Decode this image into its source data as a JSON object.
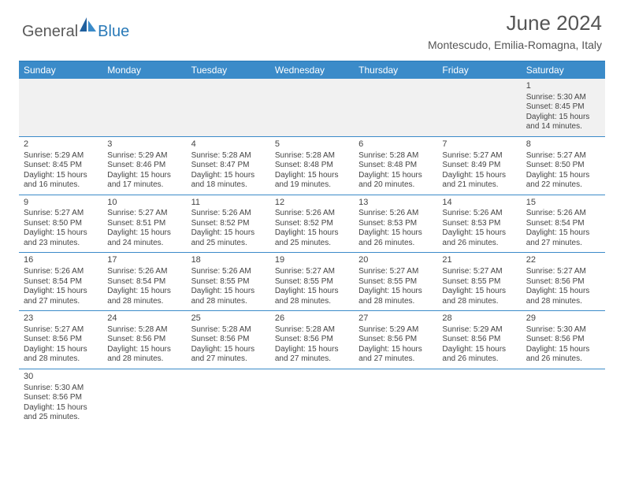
{
  "logo": {
    "general": "General",
    "blue": "Blue"
  },
  "title": "June 2024",
  "location": "Montescudo, Emilia-Romagna, Italy",
  "colors": {
    "header_bg": "#3b8bc9",
    "border": "#3b8bc9",
    "first_week_bg": "#f1f1f1",
    "text": "#444444",
    "title_text": "#555555"
  },
  "day_names": [
    "Sunday",
    "Monday",
    "Tuesday",
    "Wednesday",
    "Thursday",
    "Friday",
    "Saturday"
  ],
  "weeks": [
    [
      null,
      null,
      null,
      null,
      null,
      null,
      {
        "n": "1",
        "sr": "Sunrise: 5:30 AM",
        "ss": "Sunset: 8:45 PM",
        "d1": "Daylight: 15 hours",
        "d2": "and 14 minutes."
      }
    ],
    [
      {
        "n": "2",
        "sr": "Sunrise: 5:29 AM",
        "ss": "Sunset: 8:45 PM",
        "d1": "Daylight: 15 hours",
        "d2": "and 16 minutes."
      },
      {
        "n": "3",
        "sr": "Sunrise: 5:29 AM",
        "ss": "Sunset: 8:46 PM",
        "d1": "Daylight: 15 hours",
        "d2": "and 17 minutes."
      },
      {
        "n": "4",
        "sr": "Sunrise: 5:28 AM",
        "ss": "Sunset: 8:47 PM",
        "d1": "Daylight: 15 hours",
        "d2": "and 18 minutes."
      },
      {
        "n": "5",
        "sr": "Sunrise: 5:28 AM",
        "ss": "Sunset: 8:48 PM",
        "d1": "Daylight: 15 hours",
        "d2": "and 19 minutes."
      },
      {
        "n": "6",
        "sr": "Sunrise: 5:28 AM",
        "ss": "Sunset: 8:48 PM",
        "d1": "Daylight: 15 hours",
        "d2": "and 20 minutes."
      },
      {
        "n": "7",
        "sr": "Sunrise: 5:27 AM",
        "ss": "Sunset: 8:49 PM",
        "d1": "Daylight: 15 hours",
        "d2": "and 21 minutes."
      },
      {
        "n": "8",
        "sr": "Sunrise: 5:27 AM",
        "ss": "Sunset: 8:50 PM",
        "d1": "Daylight: 15 hours",
        "d2": "and 22 minutes."
      }
    ],
    [
      {
        "n": "9",
        "sr": "Sunrise: 5:27 AM",
        "ss": "Sunset: 8:50 PM",
        "d1": "Daylight: 15 hours",
        "d2": "and 23 minutes."
      },
      {
        "n": "10",
        "sr": "Sunrise: 5:27 AM",
        "ss": "Sunset: 8:51 PM",
        "d1": "Daylight: 15 hours",
        "d2": "and 24 minutes."
      },
      {
        "n": "11",
        "sr": "Sunrise: 5:26 AM",
        "ss": "Sunset: 8:52 PM",
        "d1": "Daylight: 15 hours",
        "d2": "and 25 minutes."
      },
      {
        "n": "12",
        "sr": "Sunrise: 5:26 AM",
        "ss": "Sunset: 8:52 PM",
        "d1": "Daylight: 15 hours",
        "d2": "and 25 minutes."
      },
      {
        "n": "13",
        "sr": "Sunrise: 5:26 AM",
        "ss": "Sunset: 8:53 PM",
        "d1": "Daylight: 15 hours",
        "d2": "and 26 minutes."
      },
      {
        "n": "14",
        "sr": "Sunrise: 5:26 AM",
        "ss": "Sunset: 8:53 PM",
        "d1": "Daylight: 15 hours",
        "d2": "and 26 minutes."
      },
      {
        "n": "15",
        "sr": "Sunrise: 5:26 AM",
        "ss": "Sunset: 8:54 PM",
        "d1": "Daylight: 15 hours",
        "d2": "and 27 minutes."
      }
    ],
    [
      {
        "n": "16",
        "sr": "Sunrise: 5:26 AM",
        "ss": "Sunset: 8:54 PM",
        "d1": "Daylight: 15 hours",
        "d2": "and 27 minutes."
      },
      {
        "n": "17",
        "sr": "Sunrise: 5:26 AM",
        "ss": "Sunset: 8:54 PM",
        "d1": "Daylight: 15 hours",
        "d2": "and 28 minutes."
      },
      {
        "n": "18",
        "sr": "Sunrise: 5:26 AM",
        "ss": "Sunset: 8:55 PM",
        "d1": "Daylight: 15 hours",
        "d2": "and 28 minutes."
      },
      {
        "n": "19",
        "sr": "Sunrise: 5:27 AM",
        "ss": "Sunset: 8:55 PM",
        "d1": "Daylight: 15 hours",
        "d2": "and 28 minutes."
      },
      {
        "n": "20",
        "sr": "Sunrise: 5:27 AM",
        "ss": "Sunset: 8:55 PM",
        "d1": "Daylight: 15 hours",
        "d2": "and 28 minutes."
      },
      {
        "n": "21",
        "sr": "Sunrise: 5:27 AM",
        "ss": "Sunset: 8:55 PM",
        "d1": "Daylight: 15 hours",
        "d2": "and 28 minutes."
      },
      {
        "n": "22",
        "sr": "Sunrise: 5:27 AM",
        "ss": "Sunset: 8:56 PM",
        "d1": "Daylight: 15 hours",
        "d2": "and 28 minutes."
      }
    ],
    [
      {
        "n": "23",
        "sr": "Sunrise: 5:27 AM",
        "ss": "Sunset: 8:56 PM",
        "d1": "Daylight: 15 hours",
        "d2": "and 28 minutes."
      },
      {
        "n": "24",
        "sr": "Sunrise: 5:28 AM",
        "ss": "Sunset: 8:56 PM",
        "d1": "Daylight: 15 hours",
        "d2": "and 28 minutes."
      },
      {
        "n": "25",
        "sr": "Sunrise: 5:28 AM",
        "ss": "Sunset: 8:56 PM",
        "d1": "Daylight: 15 hours",
        "d2": "and 27 minutes."
      },
      {
        "n": "26",
        "sr": "Sunrise: 5:28 AM",
        "ss": "Sunset: 8:56 PM",
        "d1": "Daylight: 15 hours",
        "d2": "and 27 minutes."
      },
      {
        "n": "27",
        "sr": "Sunrise: 5:29 AM",
        "ss": "Sunset: 8:56 PM",
        "d1": "Daylight: 15 hours",
        "d2": "and 27 minutes."
      },
      {
        "n": "28",
        "sr": "Sunrise: 5:29 AM",
        "ss": "Sunset: 8:56 PM",
        "d1": "Daylight: 15 hours",
        "d2": "and 26 minutes."
      },
      {
        "n": "29",
        "sr": "Sunrise: 5:30 AM",
        "ss": "Sunset: 8:56 PM",
        "d1": "Daylight: 15 hours",
        "d2": "and 26 minutes."
      }
    ],
    [
      {
        "n": "30",
        "sr": "Sunrise: 5:30 AM",
        "ss": "Sunset: 8:56 PM",
        "d1": "Daylight: 15 hours",
        "d2": "and 25 minutes."
      },
      null,
      null,
      null,
      null,
      null,
      null
    ]
  ]
}
